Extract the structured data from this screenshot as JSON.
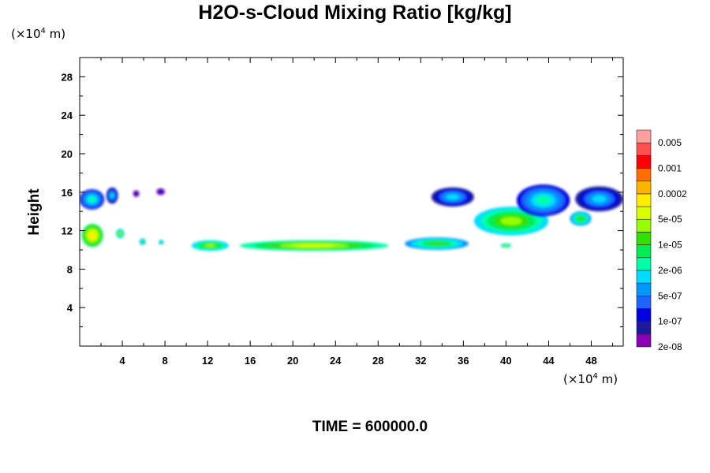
{
  "title": "H2O-s-Cloud Mixing Ratio [kg/kg]",
  "y_unit_prefix": "(×10",
  "y_unit_exp": "4",
  "y_unit_suffix": " m)",
  "x_unit_prefix": "(×10",
  "x_unit_exp": "4",
  "x_unit_suffix": " m)",
  "ylabel": "Height",
  "time_label": "TIME = 600000.0",
  "chart_data": {
    "type": "heatmap",
    "title": "H2O-s-Cloud Mixing Ratio [kg/kg]",
    "xlabel": "",
    "ylabel": "Height",
    "x_unit": "×10^4 m",
    "y_unit": "×10^4 m",
    "xlim": [
      0,
      51
    ],
    "ylim": [
      0,
      30
    ],
    "x_ticks": [
      4,
      8,
      12,
      16,
      20,
      24,
      28,
      32,
      36,
      40,
      44,
      48
    ],
    "y_ticks": [
      4,
      8,
      12,
      16,
      20,
      24,
      28
    ],
    "colorbar": {
      "labels": [
        "0.005",
        "0.001",
        "0.0002",
        "5e-05",
        "1e-05",
        "2e-06",
        "5e-07",
        "1e-07",
        "2e-08"
      ],
      "colors": [
        "#8b00b4",
        "#1a1a9a",
        "#0000e0",
        "#1e64ff",
        "#0096ff",
        "#00dcff",
        "#00ffa8",
        "#00ec50",
        "#30e000",
        "#96ff00",
        "#d8ff00",
        "#ffef00",
        "#ffb400",
        "#ff6e00",
        "#ff0000",
        "#ff5050",
        "#ffa0a0"
      ]
    },
    "cloud_regions": [
      {
        "x": [
          0,
          2.3
        ],
        "y": [
          14.2,
          16.3
        ],
        "level": 6
      },
      {
        "x": [
          2.5,
          3.6
        ],
        "y": [
          14.8,
          16.5
        ],
        "level": 5
      },
      {
        "x": [
          5.0,
          5.6
        ],
        "y": [
          15.5,
          16.2
        ],
        "level": 2
      },
      {
        "x": [
          7.2,
          8.0
        ],
        "y": [
          15.7,
          16.4
        ],
        "level": 2
      },
      {
        "x": [
          0.2,
          2.2
        ],
        "y": [
          10.3,
          12.7
        ],
        "level": 11
      },
      {
        "x": [
          3.4,
          4.2
        ],
        "y": [
          11.2,
          12.2
        ],
        "level": 9
      },
      {
        "x": [
          5.6,
          6.2
        ],
        "y": [
          10.5,
          11.2
        ],
        "level": 8
      },
      {
        "x": [
          7.4,
          7.9
        ],
        "y": [
          10.6,
          11.0
        ],
        "level": 8
      },
      {
        "x": [
          10.5,
          14.0
        ],
        "y": [
          9.9,
          11.0
        ],
        "level": 9
      },
      {
        "x": [
          15.0,
          29.0
        ],
        "y": [
          9.9,
          11.0
        ],
        "level": 10
      },
      {
        "x": [
          30.5,
          36.5
        ],
        "y": [
          10.0,
          11.3
        ],
        "level": 8
      },
      {
        "x": [
          33.0,
          37.0
        ],
        "y": [
          14.5,
          16.5
        ],
        "level": 5
      },
      {
        "x": [
          37.0,
          44.0
        ],
        "y": [
          11.5,
          14.5
        ],
        "level": 9
      },
      {
        "x": [
          41.0,
          46.0
        ],
        "y": [
          13.5,
          16.8
        ],
        "level": 6
      },
      {
        "x": [
          46.0,
          48.0
        ],
        "y": [
          12.5,
          14.0
        ],
        "level": 8
      },
      {
        "x": [
          46.5,
          51.0
        ],
        "y": [
          14.0,
          16.6
        ],
        "level": 5
      },
      {
        "x": [
          39.5,
          40.5
        ],
        "y": [
          10.2,
          10.7
        ],
        "level": 9
      }
    ]
  }
}
